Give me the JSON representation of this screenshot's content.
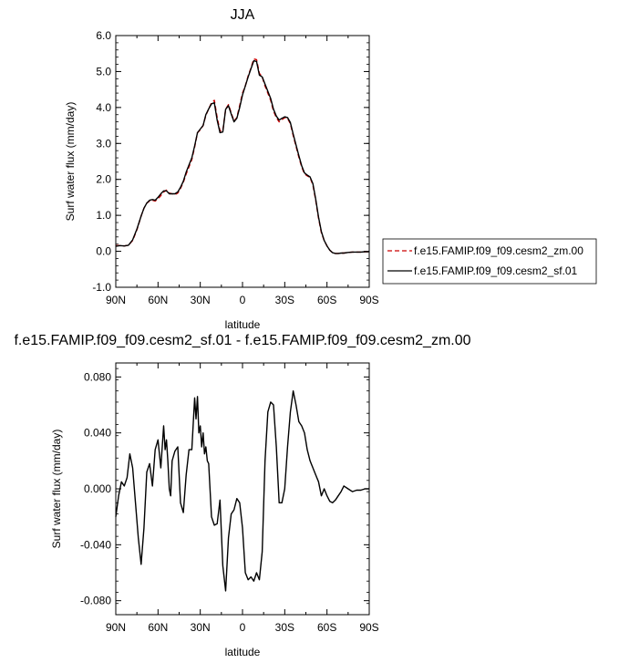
{
  "chart_data": [
    {
      "type": "line",
      "title": "JJA",
      "xlabel": "latitude",
      "ylabel": "Surf water flux (mm/day)",
      "ylim": [
        -1.0,
        6.0
      ],
      "xlim": [
        90,
        -90
      ],
      "x_ticks": [
        90,
        60,
        30,
        0,
        -30,
        -60,
        -90
      ],
      "x_tick_labels": [
        "90N",
        "60N",
        "30N",
        "0",
        "30S",
        "60S",
        "90S"
      ],
      "y_ticks": [
        -1.0,
        0.0,
        1.0,
        2.0,
        3.0,
        4.0,
        5.0,
        6.0
      ],
      "y_tick_labels": [
        "-1.0",
        "0.0",
        "1.0",
        "2.0",
        "3.0",
        "4.0",
        "5.0",
        "6.0"
      ],
      "grid": false,
      "legend": "right",
      "series": [
        {
          "name": "f.e15.FAMIP.f09_f09.cesm2_zm.00",
          "color": "#cc0000",
          "dash": "dashed",
          "x": [
            90,
            87,
            84,
            81,
            78,
            75,
            72,
            70,
            68,
            66,
            64,
            62,
            60,
            58,
            56,
            54,
            52,
            50,
            48,
            46,
            44,
            42,
            40,
            38,
            36,
            34,
            32,
            30,
            28,
            26,
            24,
            22,
            20,
            18,
            16,
            14,
            12,
            10,
            8,
            6,
            4,
            2,
            0,
            -2,
            -4,
            -6,
            -8,
            -10,
            -12,
            -14,
            -16,
            -18,
            -20,
            -22,
            -24,
            -26,
            -28,
            -30,
            -32,
            -34,
            -36,
            -38,
            -40,
            -42,
            -44,
            -46,
            -48,
            -50,
            -52,
            -54,
            -56,
            -58,
            -60,
            -62,
            -64,
            -66,
            -68,
            -70,
            -72,
            -75,
            -78,
            -81,
            -84,
            -87,
            -90
          ],
          "y": [
            0.16,
            0.16,
            0.15,
            0.17,
            0.3,
            0.6,
            0.98,
            1.2,
            1.34,
            1.4,
            1.42,
            1.4,
            1.46,
            1.55,
            1.65,
            1.7,
            1.62,
            1.6,
            1.58,
            1.62,
            1.75,
            1.92,
            2.15,
            2.35,
            2.55,
            2.9,
            3.3,
            3.38,
            3.5,
            3.78,
            3.96,
            4.13,
            4.2,
            3.72,
            3.35,
            3.35,
            3.95,
            4.08,
            3.85,
            3.62,
            3.72,
            4.05,
            4.4,
            4.6,
            4.88,
            5.1,
            5.35,
            5.33,
            4.95,
            4.85,
            4.6,
            4.4,
            4.2,
            3.9,
            3.72,
            3.6,
            3.66,
            3.72,
            3.7,
            3.55,
            3.22,
            2.92,
            2.62,
            2.35,
            2.15,
            2.1,
            2.05,
            1.85,
            1.42,
            0.92,
            0.52,
            0.3,
            0.15,
            0.03,
            -0.04,
            -0.06,
            -0.06,
            -0.05,
            -0.05,
            -0.03,
            -0.02,
            -0.02,
            -0.02,
            -0.01,
            -0.01
          ]
        },
        {
          "name": "f.e15.FAMIP.f09_f09.cesm2_sf.01",
          "color": "#000000",
          "dash": "solid",
          "x": [
            90,
            87,
            84,
            81,
            78,
            75,
            72,
            70,
            68,
            66,
            64,
            62,
            60,
            58,
            56,
            54,
            52,
            50,
            48,
            46,
            44,
            42,
            40,
            38,
            36,
            34,
            32,
            30,
            28,
            26,
            24,
            22,
            20,
            18,
            16,
            14,
            12,
            10,
            8,
            6,
            4,
            2,
            0,
            -2,
            -4,
            -6,
            -8,
            -10,
            -12,
            -14,
            -16,
            -18,
            -20,
            -22,
            -24,
            -26,
            -28,
            -30,
            -32,
            -34,
            -36,
            -38,
            -40,
            -42,
            -44,
            -46,
            -48,
            -50,
            -52,
            -54,
            -56,
            -58,
            -60,
            -62,
            -64,
            -66,
            -68,
            -70,
            -72,
            -75,
            -78,
            -81,
            -84,
            -87,
            -90
          ],
          "y": [
            0.14,
            0.16,
            0.15,
            0.17,
            0.32,
            0.62,
            0.98,
            1.2,
            1.34,
            1.42,
            1.44,
            1.42,
            1.5,
            1.6,
            1.68,
            1.68,
            1.6,
            1.6,
            1.6,
            1.65,
            1.78,
            1.95,
            2.2,
            2.4,
            2.6,
            2.93,
            3.3,
            3.4,
            3.5,
            3.8,
            3.96,
            4.1,
            4.13,
            3.65,
            3.3,
            3.32,
            3.95,
            4.05,
            3.82,
            3.6,
            3.7,
            4.0,
            4.35,
            4.6,
            4.85,
            5.08,
            5.3,
            5.28,
            4.9,
            4.85,
            4.65,
            4.45,
            4.25,
            3.95,
            3.76,
            3.65,
            3.7,
            3.74,
            3.72,
            3.58,
            3.26,
            2.96,
            2.66,
            2.38,
            2.18,
            2.12,
            2.07,
            1.88,
            1.45,
            0.95,
            0.55,
            0.3,
            0.15,
            0.03,
            -0.04,
            -0.06,
            -0.06,
            -0.05,
            -0.05,
            -0.03,
            -0.02,
            -0.02,
            -0.02,
            -0.01,
            -0.01
          ]
        }
      ]
    },
    {
      "type": "line",
      "title": "f.e15.FAMIP.f09_f09.cesm2_sf.01 - f.e15.FAMIP.f09_f09.cesm2_zm.00",
      "xlabel": "latitude",
      "ylabel": "Surf water flux (mm/day)",
      "ylim": [
        -0.09,
        0.09
      ],
      "xlim": [
        90,
        -90
      ],
      "x_ticks": [
        90,
        60,
        30,
        0,
        -30,
        -60,
        -90
      ],
      "x_tick_labels": [
        "90N",
        "60N",
        "30N",
        "0",
        "30S",
        "60S",
        "90S"
      ],
      "y_ticks": [
        0.08,
        0.04,
        0.0,
        -0.04,
        -0.08
      ],
      "y_tick_labels": [
        "0.080",
        "0.040",
        "0.000",
        "-0.040",
        "-0.080"
      ],
      "grid": false,
      "series": [
        {
          "color": "#000000",
          "dash": "solid",
          "x": [
            90,
            88,
            86,
            84,
            82,
            80,
            78,
            76,
            74,
            72,
            70,
            68,
            66,
            64,
            62,
            60,
            58,
            56,
            55,
            54,
            53,
            52,
            51,
            50,
            48,
            46,
            44,
            42,
            40,
            38,
            36,
            34,
            33,
            32,
            31,
            30,
            29,
            28,
            27,
            26,
            25,
            24,
            22,
            20,
            18,
            16,
            14,
            12,
            10,
            8,
            6,
            4,
            2,
            0,
            -2,
            -4,
            -6,
            -8,
            -10,
            -12,
            -14,
            -16,
            -18,
            -20,
            -22,
            -24,
            -26,
            -28,
            -30,
            -32,
            -34,
            -36,
            -38,
            -40,
            -42,
            -44,
            -46,
            -48,
            -50,
            -52,
            -54,
            -56,
            -58,
            -60,
            -62,
            -64,
            -66,
            -68,
            -70,
            -72,
            -75,
            -78,
            -81,
            -84,
            -87,
            -90
          ],
          "y": [
            -0.02,
            -0.005,
            0.005,
            0.002,
            0.008,
            0.025,
            0.015,
            -0.01,
            -0.035,
            -0.054,
            -0.028,
            0.012,
            0.018,
            0.002,
            0.028,
            0.035,
            0.015,
            0.045,
            0.028,
            0.035,
            0.02,
            0.0,
            -0.005,
            0.02,
            0.027,
            0.03,
            -0.01,
            -0.017,
            0.01,
            0.028,
            0.028,
            0.065,
            0.05,
            0.066,
            0.04,
            0.045,
            0.03,
            0.04,
            0.025,
            0.03,
            0.02,
            0.018,
            -0.02,
            -0.026,
            -0.025,
            -0.008,
            -0.055,
            -0.073,
            -0.035,
            -0.018,
            -0.015,
            -0.007,
            -0.01,
            -0.028,
            -0.06,
            -0.065,
            -0.063,
            -0.066,
            -0.06,
            -0.065,
            -0.045,
            0.02,
            0.055,
            0.062,
            0.06,
            0.03,
            -0.01,
            -0.01,
            0.0,
            0.03,
            0.055,
            0.07,
            0.06,
            0.048,
            0.045,
            0.04,
            0.028,
            0.02,
            0.015,
            0.01,
            0.005,
            -0.005,
            0.0,
            -0.005,
            -0.009,
            -0.01,
            -0.008,
            -0.005,
            -0.002,
            0.002,
            0.0,
            -0.002,
            -0.001,
            -0.001,
            0.0,
            0.0
          ]
        }
      ]
    }
  ]
}
